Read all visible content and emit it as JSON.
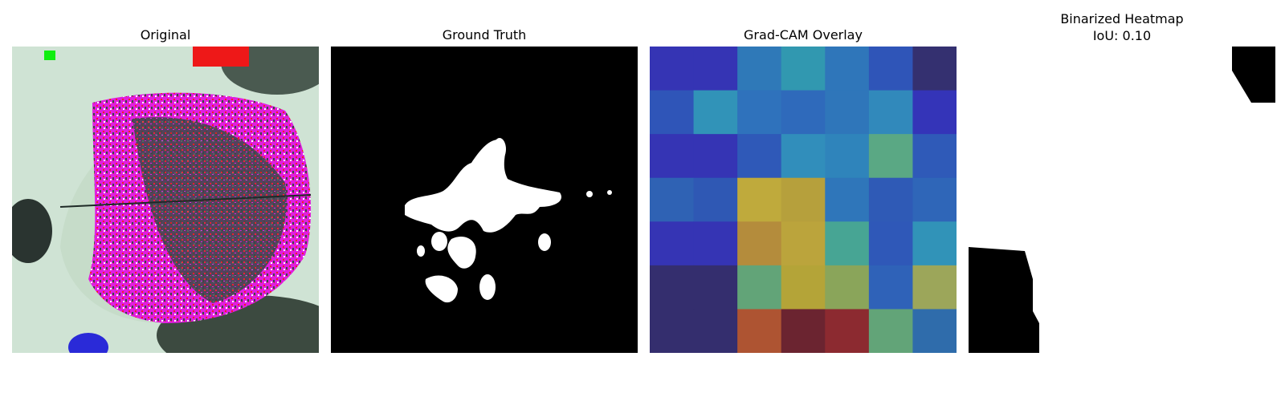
{
  "panels": [
    {
      "title": "Original",
      "subtitle": ""
    },
    {
      "title": "Ground Truth",
      "subtitle": ""
    },
    {
      "title": "Grad-CAM Overlay",
      "subtitle": ""
    },
    {
      "title": "Binarized Heatmap",
      "subtitle": "IoU: 0.10"
    }
  ],
  "gradcam_grid": [
    [
      "#3534b4",
      "#3534b4",
      "#2f79b8",
      "#3198b0",
      "#2f76ba",
      "#2f55b8",
      "#343070"
    ],
    [
      "#2f55b8",
      "#3193b8",
      "#2f72bc",
      "#2f6abb",
      "#2f76ba",
      "#3189bb",
      "#3434b8"
    ],
    [
      "#3534b4",
      "#3534b4",
      "#2f59b8",
      "#318ebb",
      "#2f84bb",
      "#5aa884",
      "#2f5ab8"
    ],
    [
      "#2f62b4",
      "#2f58b4",
      "#bfaa3c",
      "#b6a03c",
      "#2f76ba",
      "#2f5ab6",
      "#2f66b8"
    ],
    [
      "#3534b4",
      "#3534b4",
      "#b48c3c",
      "#bba43c",
      "#47a594",
      "#2f58b8",
      "#3193b8"
    ],
    [
      "#342e6e",
      "#342e6e",
      "#62a478",
      "#b4a438",
      "#8aa55a",
      "#2f62b8",
      "#9ca65a"
    ],
    [
      "#342e6e",
      "#342e6e",
      "#ae5432",
      "#6b2430",
      "#8c2a30",
      "#62a478",
      "#2f6cab"
    ]
  ]
}
